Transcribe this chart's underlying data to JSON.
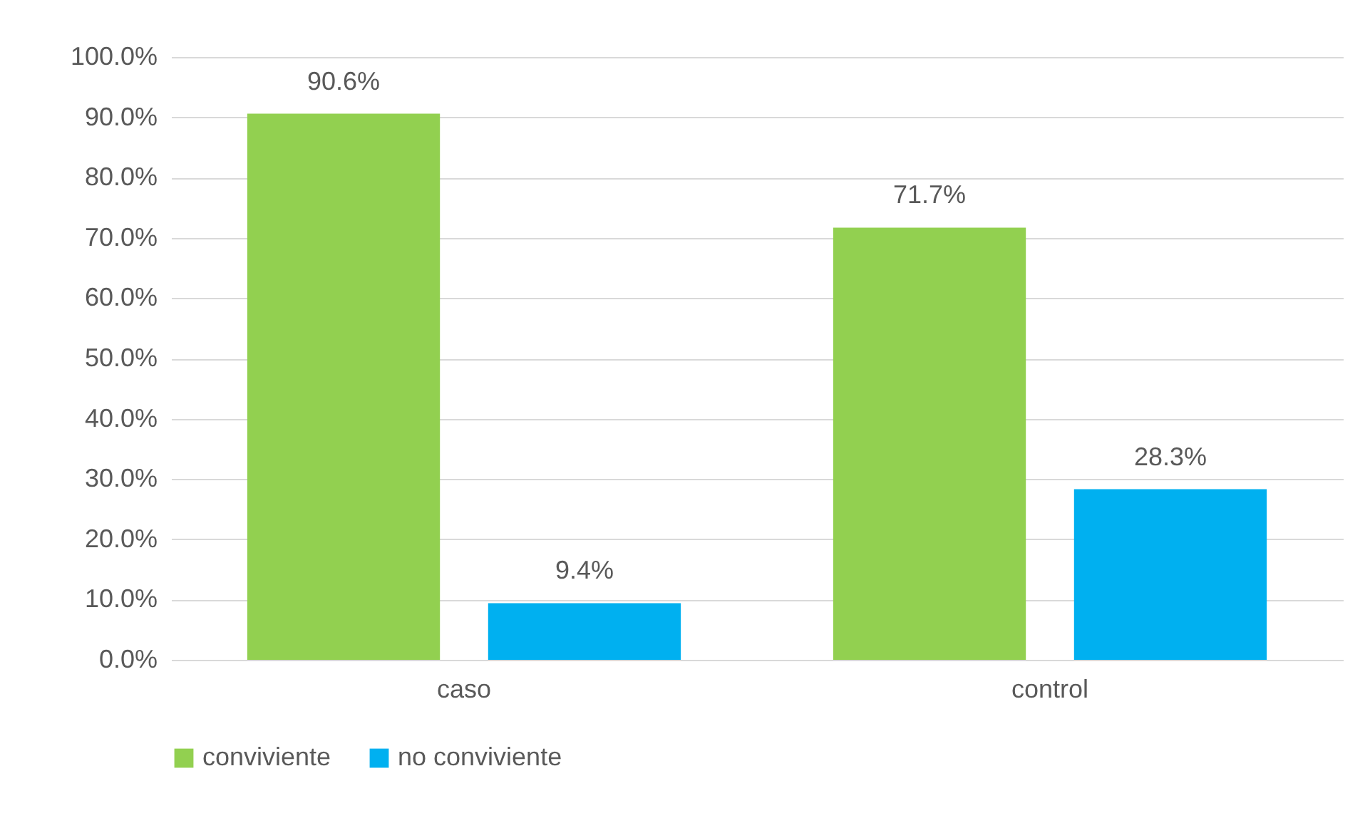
{
  "chart_data": {
    "type": "bar",
    "categories": [
      "caso",
      "control"
    ],
    "series": [
      {
        "name": "conviviente",
        "color": "#92d050",
        "values": [
          90.6,
          71.7
        ],
        "value_labels": [
          "90.6%",
          "71.7%"
        ]
      },
      {
        "name": "no conviviente",
        "color": "#00b0f0",
        "values": [
          9.4,
          28.3
        ],
        "value_labels": [
          "9.4%",
          "28.3%"
        ]
      }
    ],
    "ylim": [
      0,
      100
    ],
    "yticks": [
      {
        "value": 0,
        "label": "0.0%"
      },
      {
        "value": 10,
        "label": "10.0%"
      },
      {
        "value": 20,
        "label": "20.0%"
      },
      {
        "value": 30,
        "label": "30.0%"
      },
      {
        "value": 40,
        "label": "40.0%"
      },
      {
        "value": 50,
        "label": "50.0%"
      },
      {
        "value": 60,
        "label": "60.0%"
      },
      {
        "value": 70,
        "label": "70.0%"
      },
      {
        "value": 80,
        "label": "80.0%"
      },
      {
        "value": 90,
        "label": "90.0%"
      },
      {
        "value": 100,
        "label": "100.0%"
      }
    ],
    "grid": "y",
    "legend": "bottom"
  }
}
